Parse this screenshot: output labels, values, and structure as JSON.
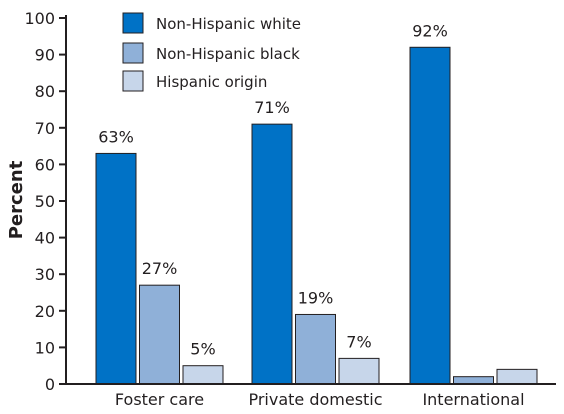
{
  "chart_data": {
    "type": "bar",
    "title": "",
    "xlabel": "",
    "ylabel": "Percent",
    "ylim": [
      0,
      100
    ],
    "yticks": [
      0,
      10,
      20,
      30,
      40,
      50,
      60,
      70,
      80,
      90,
      100
    ],
    "categories": [
      "Foster care",
      "Private domestic",
      "International"
    ],
    "series": [
      {
        "name": "Non-Hispanic white",
        "color": "#0072c6",
        "values": [
          63,
          71,
          92
        ],
        "labels": [
          "63%",
          "71%",
          "92%"
        ]
      },
      {
        "name": "Non-Hispanic black",
        "color": "#8fb0d8",
        "values": [
          27,
          19,
          2
        ],
        "labels": [
          "27%",
          "19%",
          ""
        ]
      },
      {
        "name": "Hispanic origin",
        "color": "#c7d6ea",
        "values": [
          5,
          7,
          4
        ],
        "labels": [
          "5%",
          "7%",
          ""
        ]
      }
    ],
    "legend": {
      "position": "top-left"
    },
    "grid": false
  }
}
